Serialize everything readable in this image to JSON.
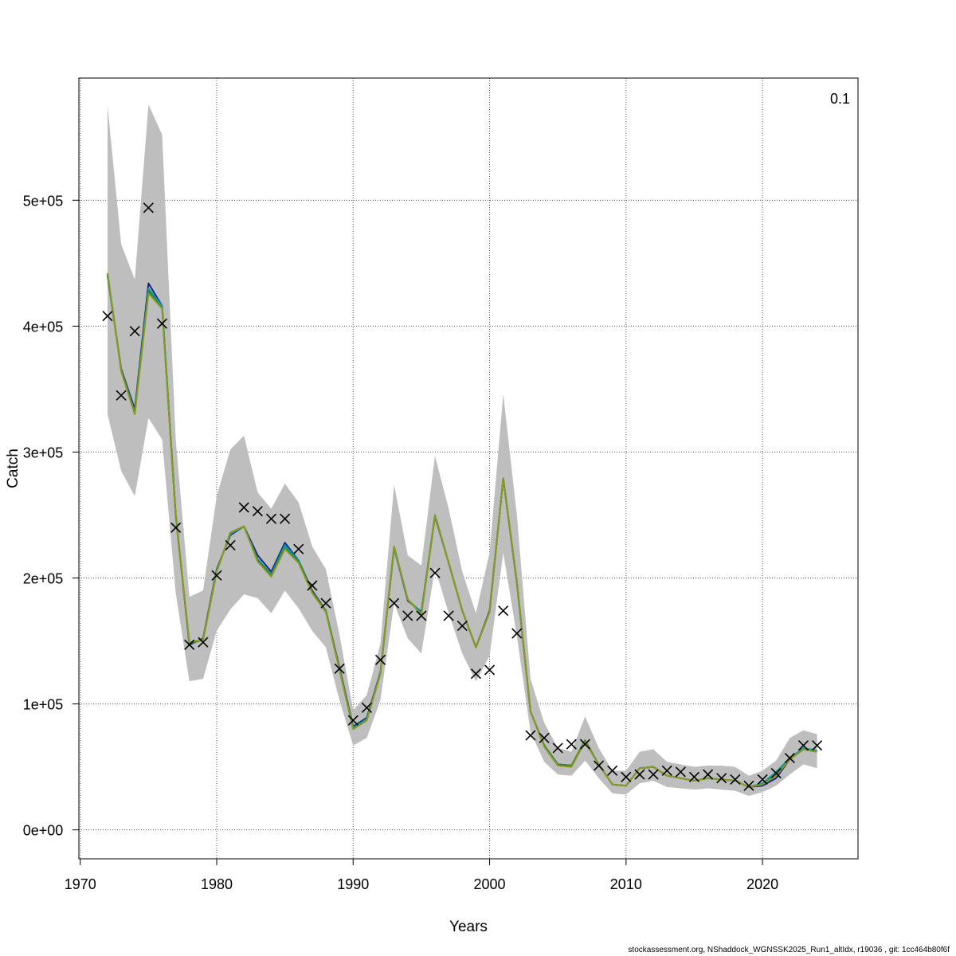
{
  "chart_data": {
    "type": "line",
    "xlabel": "Years",
    "ylabel": "Catch",
    "corner_label": "0.1",
    "xlim": [
      1969.9,
      2027
    ],
    "ylim": [
      -23000,
      597000
    ],
    "x_ticks": [
      1970,
      1980,
      1990,
      2000,
      2010,
      2020
    ],
    "y_ticks": [
      0,
      100000,
      200000,
      300000,
      400000,
      500000
    ],
    "y_tick_labels": [
      "0e+00",
      "1e+05",
      "2e+05",
      "3e+05",
      "4e+05",
      "5e+05"
    ],
    "grid": true,
    "years": [
      1972,
      1973,
      1974,
      1975,
      1976,
      1977,
      1978,
      1979,
      1980,
      1981,
      1982,
      1983,
      1984,
      1985,
      1986,
      1987,
      1988,
      1989,
      1990,
      1991,
      1992,
      1993,
      1994,
      1995,
      1996,
      1997,
      1998,
      1999,
      2000,
      2001,
      2002,
      2003,
      2004,
      2005,
      2006,
      2007,
      2008,
      2009,
      2010,
      2011,
      2012,
      2013,
      2014,
      2015,
      2016,
      2017,
      2018,
      2019,
      2020,
      2021,
      2022,
      2023,
      2024
    ],
    "ci_upper": [
      575000,
      465000,
      437000,
      576000,
      552000,
      310000,
      185000,
      190000,
      265000,
      302000,
      313000,
      268000,
      255000,
      275000,
      260000,
      225000,
      207000,
      155000,
      95000,
      107000,
      148000,
      274000,
      218000,
      210000,
      297000,
      255000,
      205000,
      172000,
      220000,
      346000,
      250000,
      120000,
      85000,
      65000,
      62000,
      90000,
      65000,
      47000,
      47000,
      62000,
      64000,
      54000,
      52000,
      50000,
      51000,
      51000,
      50000,
      43000,
      47000,
      55000,
      73000,
      79000,
      76000
    ],
    "ci_lower": [
      330000,
      285000,
      265000,
      327000,
      310000,
      188000,
      118000,
      120000,
      158000,
      175000,
      187000,
      184000,
      172000,
      190000,
      176000,
      158000,
      145000,
      103000,
      67000,
      73000,
      103000,
      180000,
      152000,
      140000,
      208000,
      172000,
      140000,
      118000,
      138000,
      220000,
      154000,
      78000,
      54000,
      44000,
      43000,
      55000,
      41000,
      29000,
      28000,
      37000,
      39000,
      34000,
      33000,
      32000,
      33000,
      32000,
      31000,
      27000,
      30000,
      35000,
      44000,
      52000,
      49000
    ],
    "observed": [
      408000,
      345000,
      396000,
      494000,
      402000,
      240000,
      147000,
      149000,
      202000,
      226000,
      256000,
      253000,
      247000,
      247000,
      223000,
      194000,
      180000,
      128000,
      87000,
      97000,
      135000,
      180000,
      170000,
      170000,
      204000,
      170000,
      162000,
      124000,
      127000,
      174000,
      156000,
      75000,
      73000,
      65000,
      68000,
      68000,
      51000,
      47000,
      42000,
      44000,
      44000,
      47000,
      46000,
      42000,
      44000,
      41000,
      40000,
      35000,
      40000,
      45000,
      57000,
      67000,
      67000
    ],
    "series": [
      {
        "color": "#1a237e",
        "values": [
          440000,
          366000,
          334000,
          434000,
          416000,
          250000,
          147000,
          152000,
          207000,
          234000,
          241000,
          218000,
          205000,
          228000,
          214000,
          190000,
          174000,
          129000,
          82000,
          89000,
          125000,
          224000,
          182000,
          173000,
          249000,
          212000,
          174000,
          145000,
          174000,
          279000,
          196000,
          94000,
          67000,
          52000,
          51000,
          70000,
          52000,
          36000,
          35000,
          49000,
          50000,
          43000,
          41000,
          39000,
          41000,
          40000,
          39000,
          34000,
          35000,
          41000,
          56000,
          64000,
          62000
        ]
      },
      {
        "color": "#00a0b0",
        "values": [
          441000,
          365000,
          332000,
          430000,
          416000,
          249000,
          148000,
          151000,
          206000,
          235000,
          241000,
          215000,
          203000,
          226000,
          214000,
          189000,
          174000,
          128000,
          81000,
          88000,
          124000,
          224000,
          183000,
          172000,
          250000,
          212000,
          174000,
          145000,
          173000,
          279000,
          197000,
          94000,
          67000,
          52000,
          51000,
          71000,
          52000,
          36000,
          35000,
          49000,
          50000,
          43000,
          41000,
          39000,
          41000,
          40000,
          39000,
          34000,
          37000,
          46000,
          57000,
          65000,
          63000
        ]
      },
      {
        "color": "#2e7d32",
        "values": [
          442000,
          365000,
          331000,
          428000,
          414000,
          249000,
          148000,
          151000,
          205000,
          236000,
          241000,
          214000,
          202000,
          224000,
          213000,
          189000,
          174000,
          128000,
          80000,
          87000,
          124000,
          225000,
          183000,
          171000,
          250000,
          212000,
          174000,
          145000,
          173000,
          279000,
          197000,
          94000,
          67000,
          52000,
          51000,
          71000,
          52000,
          36000,
          35000,
          49000,
          50000,
          43000,
          41000,
          39000,
          41000,
          40000,
          39000,
          34000,
          36000,
          44000,
          56000,
          64000,
          62000
        ]
      },
      {
        "color": "#8a9a1e",
        "values": [
          442000,
          364000,
          330000,
          426000,
          414000,
          248000,
          149000,
          151000,
          205000,
          236000,
          241000,
          213000,
          201000,
          223000,
          212000,
          188000,
          173000,
          127000,
          80000,
          87000,
          124000,
          225000,
          183000,
          171000,
          250000,
          212000,
          174000,
          145000,
          173000,
          279000,
          197000,
          94000,
          66000,
          51000,
          50000,
          70000,
          52000,
          36000,
          35000,
          49000,
          50000,
          43000,
          41000,
          39000,
          41000,
          40000,
          39000,
          34000,
          36000,
          43000,
          56000,
          64000,
          62000
        ]
      }
    ]
  },
  "footer": "stockassessment.org, NShaddock_WGNSSK2025_Run1_altIdx, r19036 , git: 1cc464b80f6f"
}
